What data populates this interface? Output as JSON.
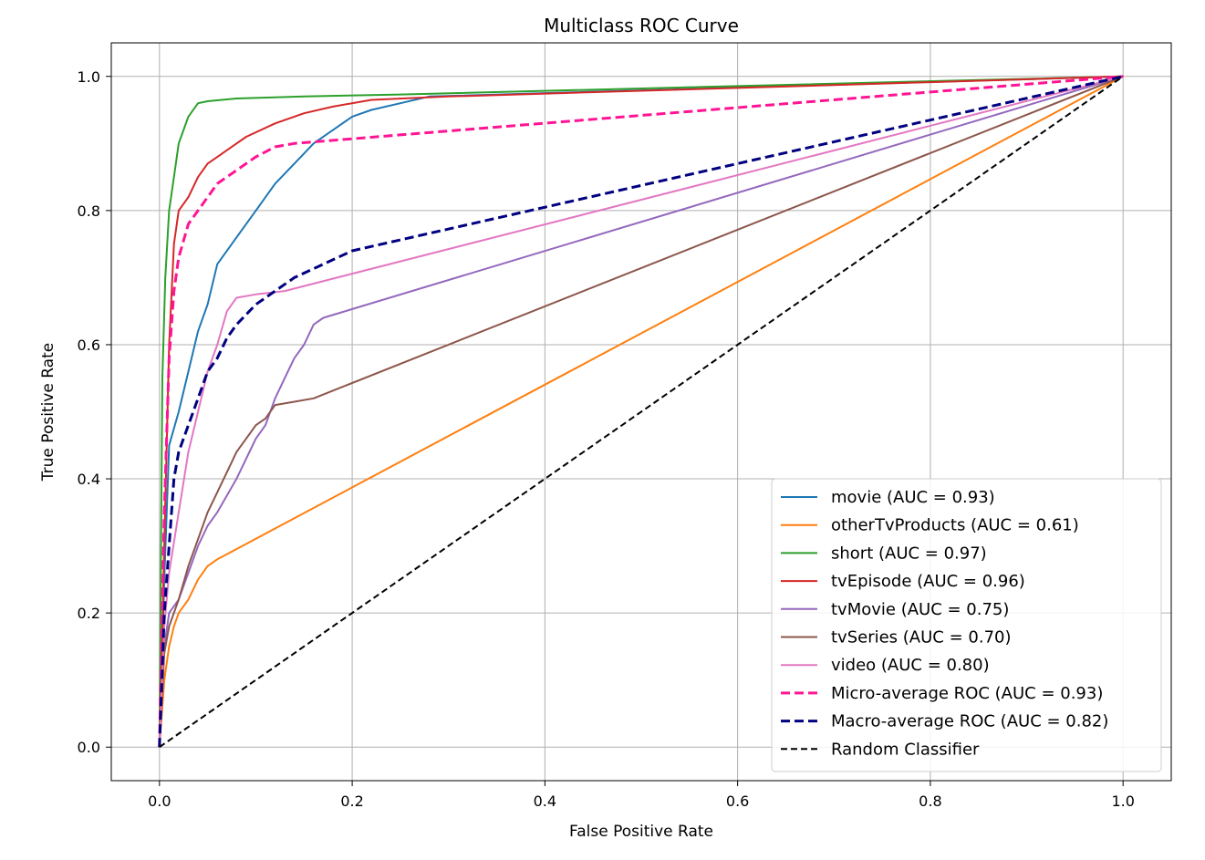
{
  "chart_data": {
    "type": "line",
    "title": "Multiclass ROC Curve",
    "xlabel": "False Positive Rate",
    "ylabel": "True Positive Rate",
    "xlim": [
      -0.05,
      1.05
    ],
    "ylim": [
      -0.05,
      1.05
    ],
    "xticks": [
      0.0,
      0.2,
      0.4,
      0.6,
      0.8,
      1.0
    ],
    "yticks": [
      0.0,
      0.2,
      0.4,
      0.6,
      0.8,
      1.0
    ],
    "xtick_labels": [
      "0.0",
      "0.2",
      "0.4",
      "0.6",
      "0.8",
      "1.0"
    ],
    "ytick_labels": [
      "0.0",
      "0.2",
      "0.4",
      "0.6",
      "0.8",
      "1.0"
    ],
    "grid": true,
    "legend_position": "lower-right",
    "series": [
      {
        "name": "movie (AUC = 0.93)",
        "color": "#1f77b4",
        "style": "solid",
        "x": [
          0,
          0.005,
          0.01,
          0.02,
          0.03,
          0.04,
          0.05,
          0.06,
          0.08,
          0.1,
          0.12,
          0.14,
          0.16,
          0.18,
          0.2,
          0.22,
          0.25,
          0.28,
          1.0
        ],
        "y": [
          0,
          0.25,
          0.45,
          0.5,
          0.56,
          0.62,
          0.66,
          0.72,
          0.76,
          0.8,
          0.84,
          0.87,
          0.9,
          0.92,
          0.94,
          0.95,
          0.96,
          0.97,
          1.0
        ]
      },
      {
        "name": "otherTvProducts (AUC = 0.61)",
        "color": "#ff7f0e",
        "style": "solid",
        "x": [
          0,
          0.005,
          0.01,
          0.015,
          0.02,
          0.03,
          0.04,
          0.05,
          0.06,
          1.0
        ],
        "y": [
          0,
          0.1,
          0.15,
          0.18,
          0.2,
          0.22,
          0.25,
          0.27,
          0.28,
          1.0
        ]
      },
      {
        "name": "short (AUC = 0.97)",
        "color": "#2ca02c",
        "style": "solid",
        "x": [
          0,
          0.003,
          0.006,
          0.01,
          0.015,
          0.02,
          0.03,
          0.04,
          0.05,
          0.08,
          0.15,
          0.25,
          1.0
        ],
        "y": [
          0,
          0.55,
          0.7,
          0.8,
          0.85,
          0.9,
          0.94,
          0.96,
          0.963,
          0.967,
          0.97,
          0.973,
          1.0
        ]
      },
      {
        "name": "tvEpisode (AUC = 0.96)",
        "color": "#d62728",
        "style": "solid",
        "x": [
          0,
          0.005,
          0.01,
          0.015,
          0.02,
          0.03,
          0.04,
          0.05,
          0.07,
          0.09,
          0.12,
          0.15,
          0.18,
          0.22,
          0.3,
          1.0
        ],
        "y": [
          0,
          0.3,
          0.6,
          0.75,
          0.8,
          0.82,
          0.85,
          0.87,
          0.89,
          0.91,
          0.93,
          0.945,
          0.955,
          0.965,
          0.97,
          1.0
        ]
      },
      {
        "name": "tvMovie (AUC = 0.75)",
        "color": "#9467bd",
        "style": "solid",
        "x": [
          0,
          0.005,
          0.01,
          0.02,
          0.03,
          0.04,
          0.05,
          0.06,
          0.08,
          0.1,
          0.11,
          0.12,
          0.13,
          0.14,
          0.15,
          0.16,
          0.17,
          1.0
        ],
        "y": [
          0,
          0.15,
          0.2,
          0.22,
          0.26,
          0.3,
          0.33,
          0.35,
          0.4,
          0.46,
          0.48,
          0.52,
          0.55,
          0.58,
          0.6,
          0.63,
          0.64,
          1.0
        ]
      },
      {
        "name": "tvSeries (AUC = 0.70)",
        "color": "#8c564b",
        "style": "solid",
        "x": [
          0,
          0.005,
          0.01,
          0.02,
          0.03,
          0.04,
          0.05,
          0.06,
          0.07,
          0.08,
          0.09,
          0.1,
          0.11,
          0.12,
          0.14,
          0.16,
          1.0
        ],
        "y": [
          0,
          0.14,
          0.18,
          0.22,
          0.27,
          0.31,
          0.35,
          0.38,
          0.41,
          0.44,
          0.46,
          0.48,
          0.49,
          0.51,
          0.515,
          0.52,
          1.0
        ]
      },
      {
        "name": "video (AUC = 0.80)",
        "color": "#e377c2",
        "style": "solid",
        "x": [
          0,
          0.005,
          0.01,
          0.02,
          0.03,
          0.04,
          0.05,
          0.06,
          0.07,
          0.08,
          0.1,
          0.13,
          1.0
        ],
        "y": [
          0,
          0.18,
          0.26,
          0.35,
          0.44,
          0.5,
          0.56,
          0.6,
          0.65,
          0.67,
          0.675,
          0.68,
          1.0
        ]
      },
      {
        "name": "Micro-average ROC (AUC = 0.93)",
        "color": "#ff1493",
        "style": "dashed",
        "x": [
          0,
          0.005,
          0.01,
          0.015,
          0.02,
          0.03,
          0.04,
          0.05,
          0.06,
          0.08,
          0.1,
          0.12,
          0.14,
          1.0
        ],
        "y": [
          0,
          0.35,
          0.58,
          0.68,
          0.73,
          0.78,
          0.8,
          0.82,
          0.84,
          0.86,
          0.88,
          0.895,
          0.9,
          1.0
        ]
      },
      {
        "name": "Macro-average ROC (AUC = 0.82)",
        "color": "#000080",
        "style": "dashed",
        "x": [
          0,
          0.005,
          0.01,
          0.015,
          0.02,
          0.03,
          0.04,
          0.05,
          0.06,
          0.07,
          0.08,
          0.1,
          0.12,
          0.14,
          0.17,
          0.2,
          1.0
        ],
        "y": [
          0,
          0.2,
          0.3,
          0.4,
          0.44,
          0.48,
          0.52,
          0.56,
          0.58,
          0.61,
          0.63,
          0.66,
          0.68,
          0.7,
          0.72,
          0.74,
          1.0
        ]
      },
      {
        "name": "Random Classifier",
        "color": "#000000",
        "style": "dashed",
        "x": [
          0,
          1.0
        ],
        "y": [
          0,
          1.0
        ]
      }
    ]
  }
}
